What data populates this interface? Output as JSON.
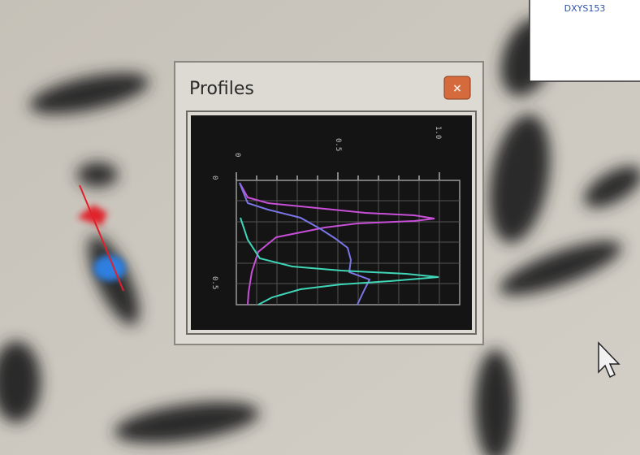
{
  "window": {
    "title": "Profiles"
  },
  "label_box": {
    "text": "DXYS153"
  },
  "plot": {
    "top_labels": [
      "0",
      "0.5",
      "1.0"
    ],
    "left_labels": [
      "0",
      "0.5"
    ]
  }
}
